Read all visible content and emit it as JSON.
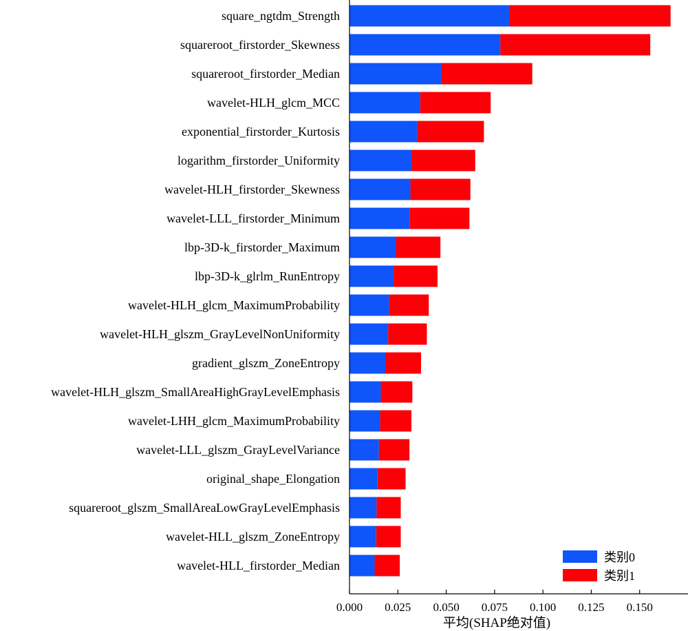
{
  "chart_data": {
    "type": "bar",
    "orientation": "horizontal",
    "stacked": true,
    "xlabel": "平均(SHAP绝对值)",
    "ylabel": "",
    "xlim": [
      0,
      0.175
    ],
    "xticks": [
      "0.000",
      "0.025",
      "0.050",
      "0.075",
      "0.100",
      "0.125",
      "0.150"
    ],
    "grid": false,
    "legend_position": "bottom-right",
    "categories": [
      "square_ngtdm_Strength",
      "squareroot_firstorder_Skewness",
      "squareroot_firstorder_Median",
      "wavelet-HLH_glcm_MCC",
      "exponential_firstorder_Kurtosis",
      "logarithm_firstorder_Uniformity",
      "wavelet-HLH_firstorder_Skewness",
      "wavelet-LLL_firstorder_Minimum",
      "lbp-3D-k_firstorder_Maximum",
      "lbp-3D-k_glrlm_RunEntropy",
      "wavelet-HLH_glcm_MaximumProbability",
      "wavelet-HLH_glszm_GrayLevelNonUniformity",
      "gradient_glszm_ZoneEntropy",
      "wavelet-HLH_glszm_SmallAreaHighGrayLevelEmphasis",
      "wavelet-LHH_glcm_MaximumProbability",
      "wavelet-LLL_glszm_GrayLevelVariance",
      "original_shape_Elongation",
      "squareroot_glszm_SmallAreaLowGrayLevelEmphasis",
      "wavelet-HLL_glszm_ZoneEntropy",
      "wavelet-HLL_firstorder_Median"
    ],
    "series": [
      {
        "name": "类别0",
        "color": "#0f55fa",
        "values": [
          0.0825,
          0.078,
          0.0475,
          0.0365,
          0.035,
          0.032,
          0.0315,
          0.0312,
          0.024,
          0.0228,
          0.0205,
          0.02,
          0.0185,
          0.0162,
          0.0158,
          0.0152,
          0.0145,
          0.014,
          0.0138,
          0.013
        ]
      },
      {
        "name": "类别1",
        "color": "#fb0107",
        "values": [
          0.0835,
          0.0775,
          0.047,
          0.0365,
          0.0345,
          0.033,
          0.031,
          0.0308,
          0.023,
          0.0227,
          0.0205,
          0.02,
          0.0185,
          0.0163,
          0.0162,
          0.0158,
          0.0145,
          0.0125,
          0.0127,
          0.013
        ]
      }
    ]
  }
}
